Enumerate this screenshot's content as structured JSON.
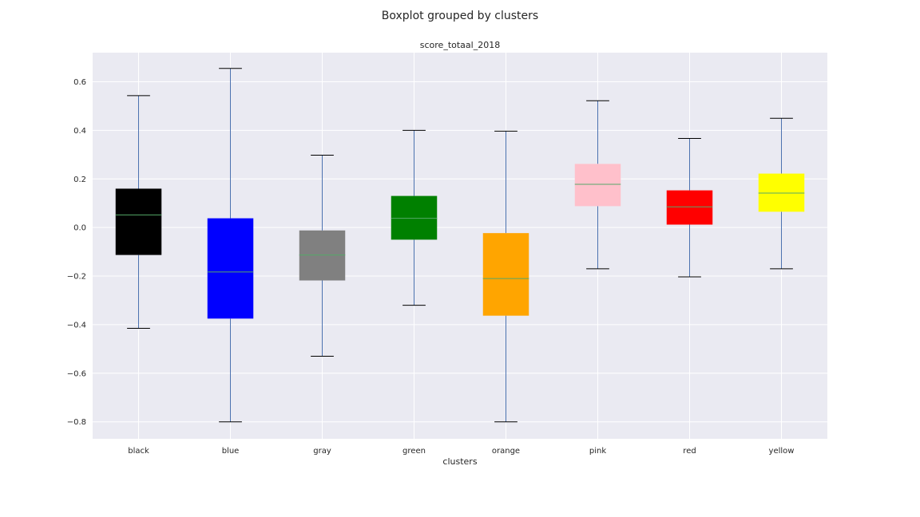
{
  "chart_data": {
    "type": "box",
    "suptitle": "Boxplot grouped by clusters",
    "title": "score_totaal_2018",
    "xlabel": "clusters",
    "ylabel": "",
    "ylim": [
      -0.87,
      0.72
    ],
    "yticks": [
      -0.8,
      -0.6,
      -0.4,
      -0.2,
      0.0,
      0.2,
      0.4,
      0.6
    ],
    "ytick_labels": [
      "−0.8",
      "−0.6",
      "−0.4",
      "−0.2",
      "0.0",
      "0.2",
      "0.4",
      "0.6"
    ],
    "grid": true,
    "categories": [
      "black",
      "blue",
      "gray",
      "green",
      "orange",
      "pink",
      "red",
      "yellow"
    ],
    "boxes": [
      {
        "name": "black",
        "color": "#000000",
        "whislo": -0.415,
        "q1": -0.113,
        "med": 0.052,
        "q3": 0.16,
        "whishi": 0.543
      },
      {
        "name": "blue",
        "color": "#0000ff",
        "whislo": -0.8,
        "q1": -0.375,
        "med": -0.183,
        "q3": 0.038,
        "whishi": 0.655
      },
      {
        "name": "gray",
        "color": "#808080",
        "whislo": -0.53,
        "q1": -0.218,
        "med": -0.113,
        "q3": -0.012,
        "whishi": 0.298
      },
      {
        "name": "green",
        "color": "#008000",
        "whislo": -0.32,
        "q1": -0.05,
        "med": 0.038,
        "q3": 0.13,
        "whishi": 0.4
      },
      {
        "name": "orange",
        "color": "#ffa500",
        "whislo": -0.8,
        "q1": -0.363,
        "med": -0.21,
        "q3": -0.023,
        "whishi": 0.397
      },
      {
        "name": "pink",
        "color": "#ffc0cb",
        "whislo": -0.17,
        "q1": 0.088,
        "med": 0.178,
        "q3": 0.262,
        "whishi": 0.522
      },
      {
        "name": "red",
        "color": "#ff0000",
        "whislo": -0.203,
        "q1": 0.012,
        "med": 0.085,
        "q3": 0.153,
        "whishi": 0.367
      },
      {
        "name": "yellow",
        "color": "#ffff00",
        "whislo": -0.17,
        "q1": 0.065,
        "med": 0.142,
        "q3": 0.222,
        "whishi": 0.45
      }
    ],
    "colors": {
      "axes_bg": "#eaeaf2",
      "grid": "#ffffff",
      "whisker": "#4c72b0",
      "cap": "#000000",
      "median": "#55a868",
      "text": "#262626"
    }
  }
}
